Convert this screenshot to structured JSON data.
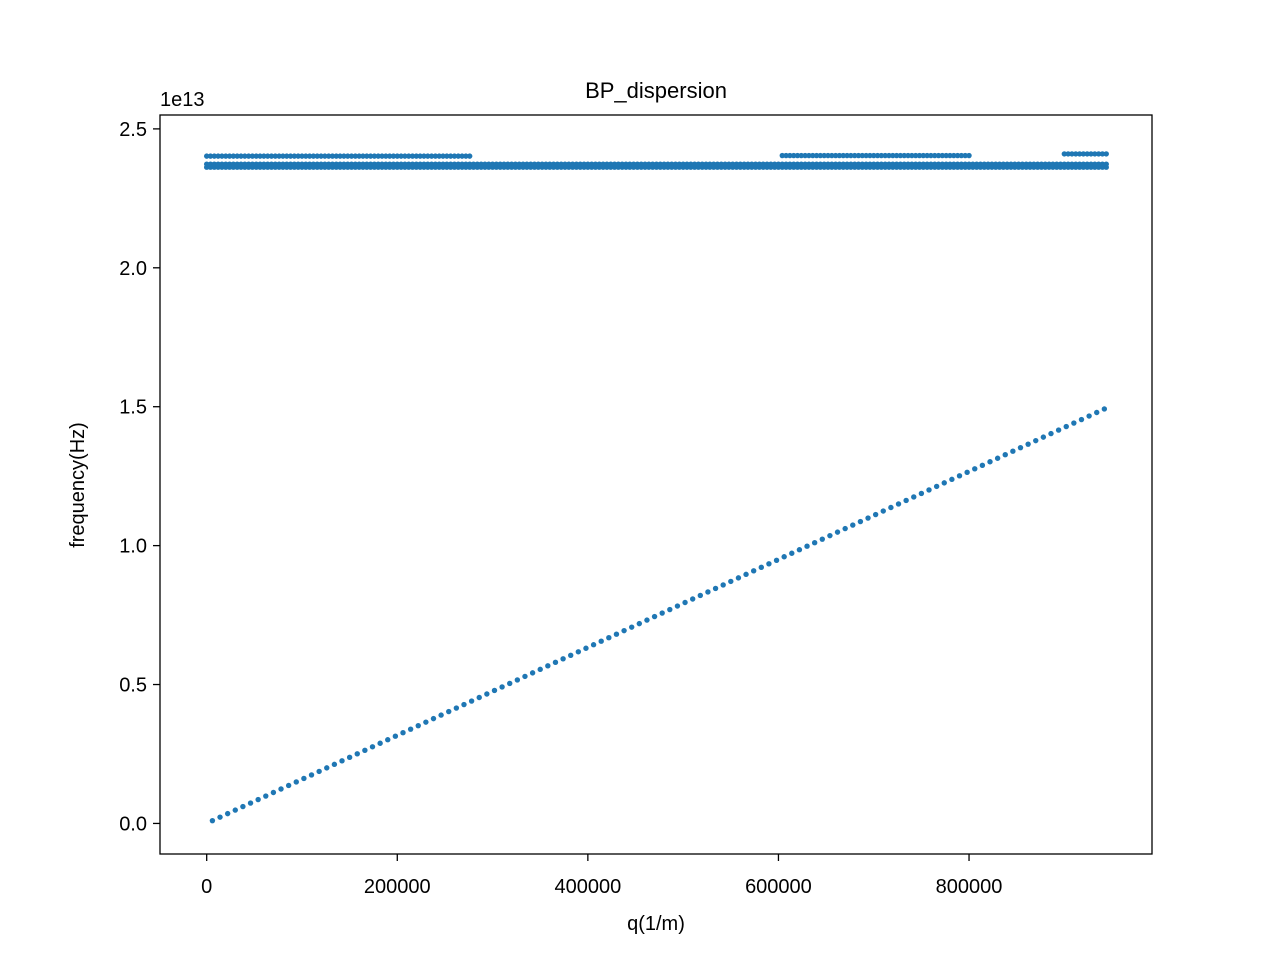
{
  "chart_data": {
    "type": "scatter",
    "title": "BP_dispersion",
    "xlabel": "q(1/m)",
    "ylabel": "frequency(Hz)",
    "y_offset_label": "1e13",
    "xlim": [
      -49000,
      992000
    ],
    "ylim": [
      -0.11,
      2.55
    ],
    "y_scale_note": "y values in units of 1e13 Hz",
    "xticks": [
      0,
      200000,
      400000,
      600000,
      800000
    ],
    "xtick_labels": [
      "0",
      "200000",
      "400000",
      "600000",
      "800000"
    ],
    "yticks": [
      0.0,
      0.5,
      1.0,
      1.5,
      2.0,
      2.5
    ],
    "ytick_labels": [
      "0.0",
      "0.5",
      "1.0",
      "1.5",
      "2.0",
      "2.5"
    ],
    "grid": false,
    "legend": false,
    "color": "#1f77b4",
    "series": [
      {
        "description_kind": "acoustic_branch",
        "x_start": 6000,
        "x_end": 944000,
        "step": 8000,
        "y_start": 0.01,
        "y_end": 1.495
      },
      {
        "description_kind": "optical_lower",
        "x_start": 0,
        "x_end": 944000,
        "step": 4000,
        "y": 2.362
      },
      {
        "description_kind": "optical_middle",
        "x_start": 0,
        "x_end": 944000,
        "step": 4000,
        "y": 2.373
      },
      {
        "description_kind": "optical_upper_segments",
        "segments": [
          {
            "x_start": 0,
            "x_end": 276000,
            "y": 2.402
          },
          {
            "x_start": 604000,
            "x_end": 800000,
            "y": 2.404
          },
          {
            "x_start": 900000,
            "x_end": 944000,
            "y": 2.41
          }
        ],
        "step": 4000
      }
    ]
  }
}
